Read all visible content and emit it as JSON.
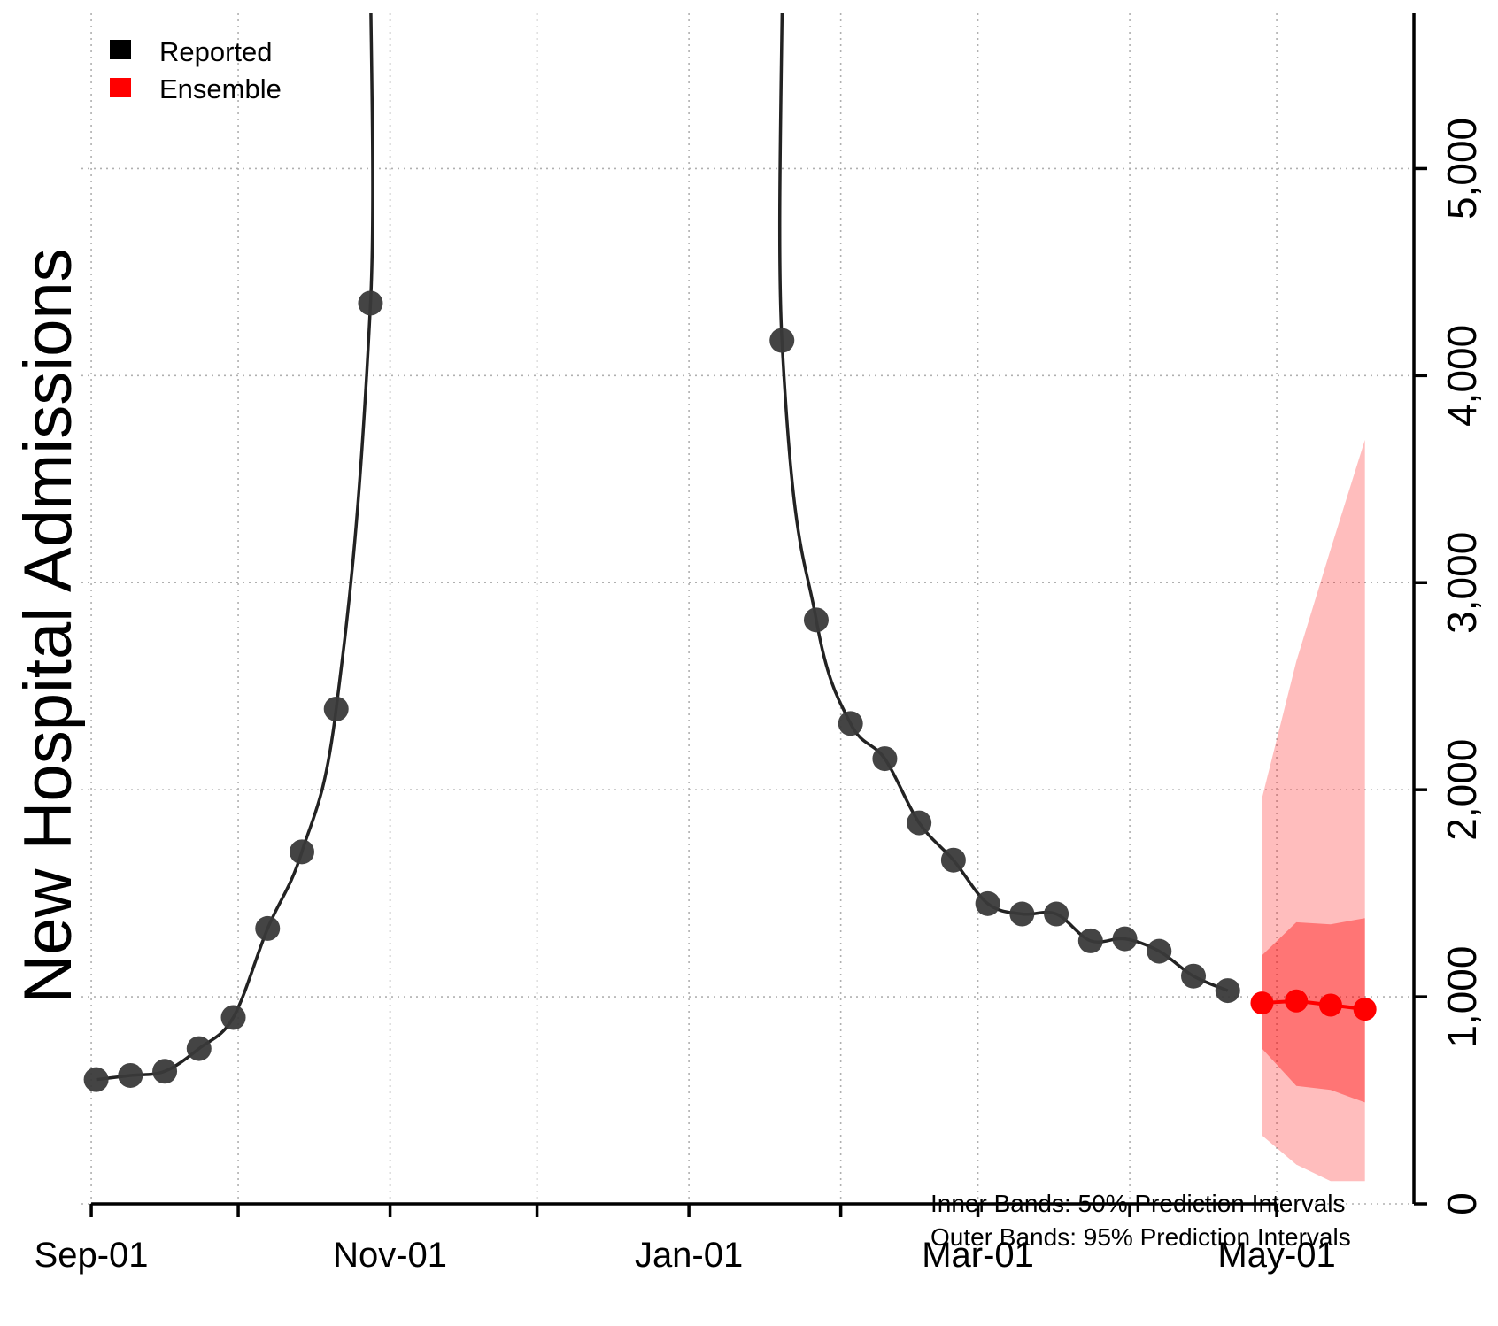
{
  "chart_data": {
    "type": "line",
    "ylabel": "New Hospital Admissions",
    "ylim": [
      0,
      5750
    ],
    "x_range": [
      "2020-08-30",
      "2021-05-29"
    ],
    "y_ticks": [
      0,
      1000,
      2000,
      3000,
      4000,
      5000
    ],
    "y_tick_labels": [
      "0",
      "1,000",
      "2,000",
      "3,000",
      "4,000",
      "5,000"
    ],
    "x_tick_dates": [
      "2020-09-01",
      "2020-10-01",
      "2020-11-01",
      "2020-12-01",
      "2021-01-01",
      "2021-02-01",
      "2021-03-01",
      "2021-04-01",
      "2021-05-01"
    ],
    "x_labels": [
      {
        "date": "2020-09-01",
        "label": "Sep-01"
      },
      {
        "date": "2020-11-01",
        "label": "Nov-01"
      },
      {
        "date": "2021-01-01",
        "label": "Jan-01"
      },
      {
        "date": "2021-03-01",
        "label": "Mar-01"
      },
      {
        "date": "2021-05-01",
        "label": "May-01"
      }
    ],
    "grid": true,
    "legend_position": "top-left",
    "legend": [
      {
        "label": "Reported",
        "color": "#000000"
      },
      {
        "label": "Ensemble",
        "color": "#ff0000"
      }
    ],
    "series": [
      {
        "name": "Reported",
        "color": "#222222",
        "points": [
          {
            "x": "2020-09-02",
            "y": 600
          },
          {
            "x": "2020-09-09",
            "y": 620
          },
          {
            "x": "2020-09-16",
            "y": 640
          },
          {
            "x": "2020-09-23",
            "y": 750
          },
          {
            "x": "2020-09-30",
            "y": 900
          },
          {
            "x": "2020-10-07",
            "y": 1330
          },
          {
            "x": "2020-10-14",
            "y": 1700
          },
          {
            "x": "2020-10-21",
            "y": 2390
          },
          {
            "x": "2020-10-28",
            "y": 4350
          },
          {
            "x": "2020-11-04",
            "y": 9000,
            "offscale": true
          },
          {
            "x": "2021-01-13",
            "y": 9000,
            "offscale": true
          },
          {
            "x": "2021-01-20",
            "y": 4170
          },
          {
            "x": "2021-01-27",
            "y": 2820
          },
          {
            "x": "2021-02-03",
            "y": 2320
          },
          {
            "x": "2021-02-10",
            "y": 2150
          },
          {
            "x": "2021-02-17",
            "y": 1840
          },
          {
            "x": "2021-02-24",
            "y": 1660
          },
          {
            "x": "2021-03-03",
            "y": 1450
          },
          {
            "x": "2021-03-10",
            "y": 1400
          },
          {
            "x": "2021-03-17",
            "y": 1400
          },
          {
            "x": "2021-03-24",
            "y": 1270
          },
          {
            "x": "2021-03-31",
            "y": 1280
          },
          {
            "x": "2021-04-07",
            "y": 1220
          },
          {
            "x": "2021-04-14",
            "y": 1100
          },
          {
            "x": "2021-04-21",
            "y": 1030
          }
        ]
      },
      {
        "name": "Ensemble",
        "color": "#ff0000",
        "points": [
          {
            "x": "2021-04-28",
            "y": 970
          },
          {
            "x": "2021-05-05",
            "y": 980
          },
          {
            "x": "2021-05-12",
            "y": 960
          },
          {
            "x": "2021-05-19",
            "y": 940
          }
        ]
      }
    ],
    "intervals": {
      "color": "#ff0000",
      "outer_95": [
        {
          "x": "2021-04-28",
          "lower": 330,
          "upper": 1960
        },
        {
          "x": "2021-05-05",
          "lower": 190,
          "upper": 2620
        },
        {
          "x": "2021-05-12",
          "lower": 110,
          "upper": 3160
        },
        {
          "x": "2021-05-19",
          "lower": 110,
          "upper": 3690
        }
      ],
      "inner_50": [
        {
          "x": "2021-04-28",
          "lower": 750,
          "upper": 1200
        },
        {
          "x": "2021-05-05",
          "lower": 570,
          "upper": 1360
        },
        {
          "x": "2021-05-12",
          "lower": 550,
          "upper": 1350
        },
        {
          "x": "2021-05-19",
          "lower": 490,
          "upper": 1380
        }
      ]
    },
    "annotations": [
      "Inner Bands: 50% Prediction Intervals",
      "Outer Bands: 95% Prediction Intervals"
    ]
  }
}
